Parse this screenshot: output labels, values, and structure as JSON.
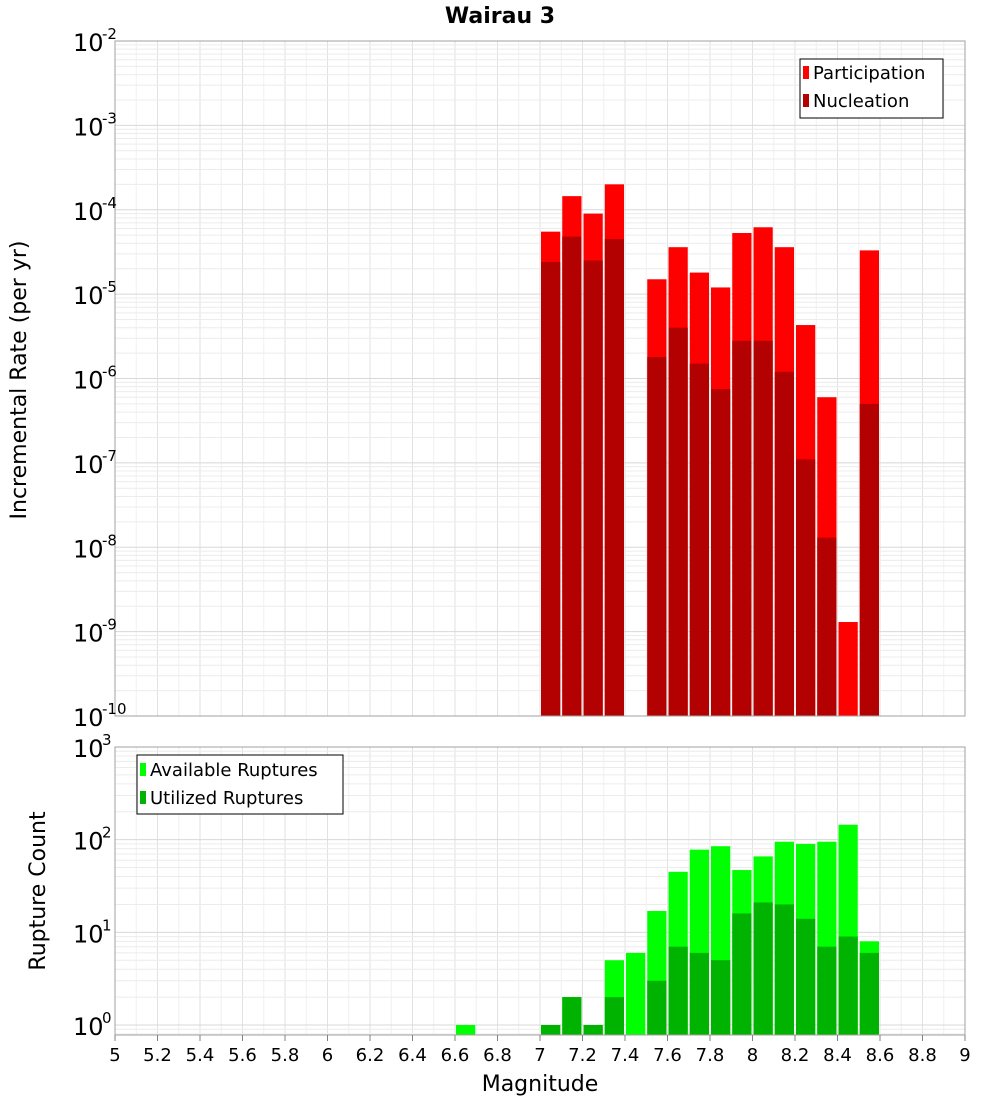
{
  "chart_data": [
    {
      "type": "bar",
      "title": "Wairau 3",
      "xlabel": "",
      "ylabel": "Incremental Rate (per yr)",
      "yscale": "log",
      "xlim": [
        5,
        9
      ],
      "ylim": [
        1e-10,
        0.01
      ],
      "y_ticks": [
        {
          "base": "10",
          "exp": "-10"
        },
        {
          "base": "10",
          "exp": "-9"
        },
        {
          "base": "10",
          "exp": "-8"
        },
        {
          "base": "10",
          "exp": "-7"
        },
        {
          "base": "10",
          "exp": "-6"
        },
        {
          "base": "10",
          "exp": "-5"
        },
        {
          "base": "10",
          "exp": "-4"
        },
        {
          "base": "10",
          "exp": "-3"
        },
        {
          "base": "10",
          "exp": "-2"
        }
      ],
      "grid": true,
      "legend_position": "top-right",
      "x": [
        7.05,
        7.15,
        7.25,
        7.35,
        7.55,
        7.65,
        7.75,
        7.85,
        7.95,
        8.05,
        8.15,
        8.25,
        8.35,
        8.45,
        8.55
      ],
      "series": [
        {
          "name": "Participation",
          "color": "#ff0000",
          "values": [
            5.5e-05,
            0.000145,
            9e-05,
            0.0002,
            1.5e-05,
            3.6e-05,
            1.8e-05,
            1.2e-05,
            5.3e-05,
            6.2e-05,
            3.6e-05,
            4.3e-06,
            6e-07,
            1.3e-09,
            3.3e-05
          ]
        },
        {
          "name": "Nucleation",
          "color": "#b30000",
          "values": [
            2.4e-05,
            4.8e-05,
            2.5e-05,
            4.5e-05,
            1.8e-06,
            4e-06,
            1.5e-06,
            7.5e-07,
            2.8e-06,
            2.8e-06,
            1.2e-06,
            1.1e-07,
            1.3e-08,
            null,
            5e-07
          ]
        }
      ]
    },
    {
      "type": "bar",
      "title": "",
      "xlabel": "Magnitude",
      "ylabel": "Rupture Count",
      "yscale": "log",
      "xlim": [
        5,
        9
      ],
      "ylim": [
        0.78,
        1000
      ],
      "x_ticks": [
        "5",
        "5.2",
        "5.4",
        "5.6",
        "5.8",
        "6",
        "6.2",
        "6.4",
        "6.6",
        "6.8",
        "7",
        "7.2",
        "7.4",
        "7.6",
        "7.8",
        "8",
        "8.2",
        "8.4",
        "8.6",
        "8.8",
        "9"
      ],
      "y_ticks": [
        {
          "base": "10",
          "exp": "0"
        },
        {
          "base": "10",
          "exp": "1"
        },
        {
          "base": "10",
          "exp": "2"
        },
        {
          "base": "10",
          "exp": "3"
        }
      ],
      "grid": true,
      "legend_position": "top-left",
      "x": [
        6.65,
        7.05,
        7.15,
        7.25,
        7.35,
        7.45,
        7.55,
        7.65,
        7.75,
        7.85,
        7.95,
        8.05,
        8.15,
        8.25,
        8.35,
        8.45,
        8.55
      ],
      "series": [
        {
          "name": "Available Ruptures",
          "color": "#00ff00",
          "values": [
            1,
            1,
            2,
            1,
            5,
            6,
            17,
            45,
            78,
            85,
            47,
            66,
            95,
            90,
            95,
            145,
            8
          ]
        },
        {
          "name": "Utilized Ruptures",
          "color": "#00b300",
          "values": [
            null,
            1,
            2,
            1,
            2,
            null,
            3,
            7,
            6,
            5,
            16,
            21,
            20,
            14,
            7,
            9,
            6
          ]
        }
      ]
    }
  ]
}
